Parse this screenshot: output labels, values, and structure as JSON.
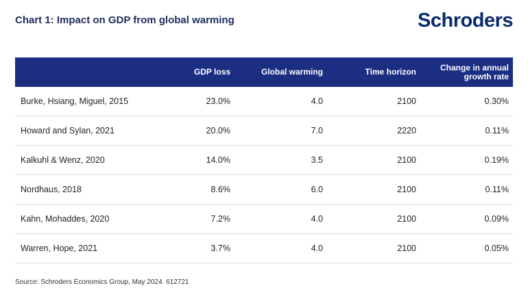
{
  "header": {
    "title": "Chart 1: Impact on GDP from global warming",
    "logo_text": "Schroders"
  },
  "chart_data": {
    "type": "table",
    "title": "Chart 1: Impact on GDP from global warming",
    "columns": [
      "",
      "GDP loss",
      "Global warming",
      "Time horizon",
      "Change in annual growth rate"
    ],
    "rows": [
      [
        "Burke, Hsiang, Miguel, 2015",
        "23.0%",
        "4.0",
        "2100",
        "0.30%"
      ],
      [
        "Howard and Sylan, 2021",
        "20.0%",
        "7.0",
        "2220",
        "0.11%"
      ],
      [
        "Kalkuhl & Wenz, 2020",
        "14.0%",
        "3.5",
        "2100",
        "0.19%"
      ],
      [
        "Nordhaus, 2018",
        "8.6%",
        "6.0",
        "2100",
        "0.11%"
      ],
      [
        "Kahn, Mohaddes, 2020",
        "7.2%",
        "4.0",
        "2100",
        "0.09%"
      ],
      [
        "Warren, Hope, 2021",
        "3.7%",
        "4.0",
        "2100",
        "0.05%"
      ]
    ]
  },
  "footer": {
    "source": "Source: Schroders Economics Group, May 2024. 612721"
  },
  "colors": {
    "header_bg": "#1c2e82",
    "title_color": "#1c2e5e",
    "logo_color": "#0b2a6b"
  }
}
